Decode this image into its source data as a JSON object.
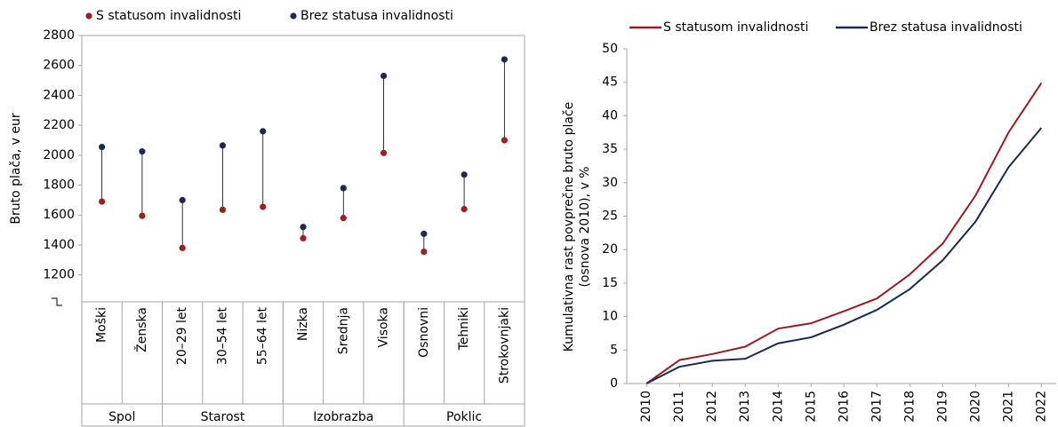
{
  "chart_data": [
    {
      "type": "dot",
      "ylabel": "Bruto plača, v eur",
      "groups": [
        {
          "name": "Spol",
          "categories": [
            "Moški",
            "Ženska"
          ]
        },
        {
          "name": "Starost",
          "categories": [
            "20–29 let",
            "30–54 let",
            "55–64 let"
          ]
        },
        {
          "name": "Izobrazba",
          "categories": [
            "Nizka",
            "Srednja",
            "Visoka"
          ]
        },
        {
          "name": "Poklic",
          "categories": [
            "Osnovni",
            "Tehniki",
            "Strokovnjaki"
          ]
        }
      ],
      "series": [
        {
          "name": "S statusom invalidnosti",
          "color": "#a11d22",
          "values": [
            1690,
            1595,
            1380,
            1635,
            1655,
            1445,
            1580,
            2015,
            1355,
            1640,
            2100
          ]
        },
        {
          "name": "Brez statusa invalidnosti",
          "color": "#1b2a4e",
          "values": [
            2055,
            2025,
            1700,
            2065,
            2160,
            1520,
            1780,
            2530,
            1475,
            1870,
            2640
          ]
        }
      ],
      "ylim": [
        1020,
        2800
      ],
      "yticks": [
        1200,
        1400,
        1600,
        1800,
        2000,
        2200,
        2400,
        2600,
        2800
      ],
      "grid": false
    },
    {
      "type": "line",
      "ylabel": [
        "Kumulativna rast povprečne bruto plače",
        "(osnova 2010), v %"
      ],
      "x": [
        2010,
        2011,
        2012,
        2013,
        2014,
        2015,
        2016,
        2017,
        2018,
        2019,
        2020,
        2021,
        2022
      ],
      "series": [
        {
          "name": "S statusom invalidnosti",
          "color": "#9b1c22",
          "values": [
            0,
            3.5,
            4.4,
            5.5,
            8.2,
            9.0,
            10.8,
            12.7,
            16.3,
            20.9,
            28.1,
            37.5,
            44.9
          ]
        },
        {
          "name": "Brez statusa invalidnosti",
          "color": "#1b2a4e",
          "values": [
            0,
            2.5,
            3.4,
            3.7,
            6.0,
            6.9,
            8.8,
            11.0,
            14.1,
            18.4,
            24.2,
            32.3,
            38.2
          ]
        }
      ],
      "xlim": [
        2009.4,
        2022.45
      ],
      "xticks": [
        2010,
        2011,
        2012,
        2013,
        2014,
        2015,
        2016,
        2017,
        2018,
        2019,
        2020,
        2021,
        2022
      ],
      "ylim": [
        0,
        50
      ],
      "yticks": [
        0,
        5,
        10,
        15,
        20,
        25,
        30,
        35,
        40,
        45,
        50
      ],
      "grid": false
    }
  ]
}
